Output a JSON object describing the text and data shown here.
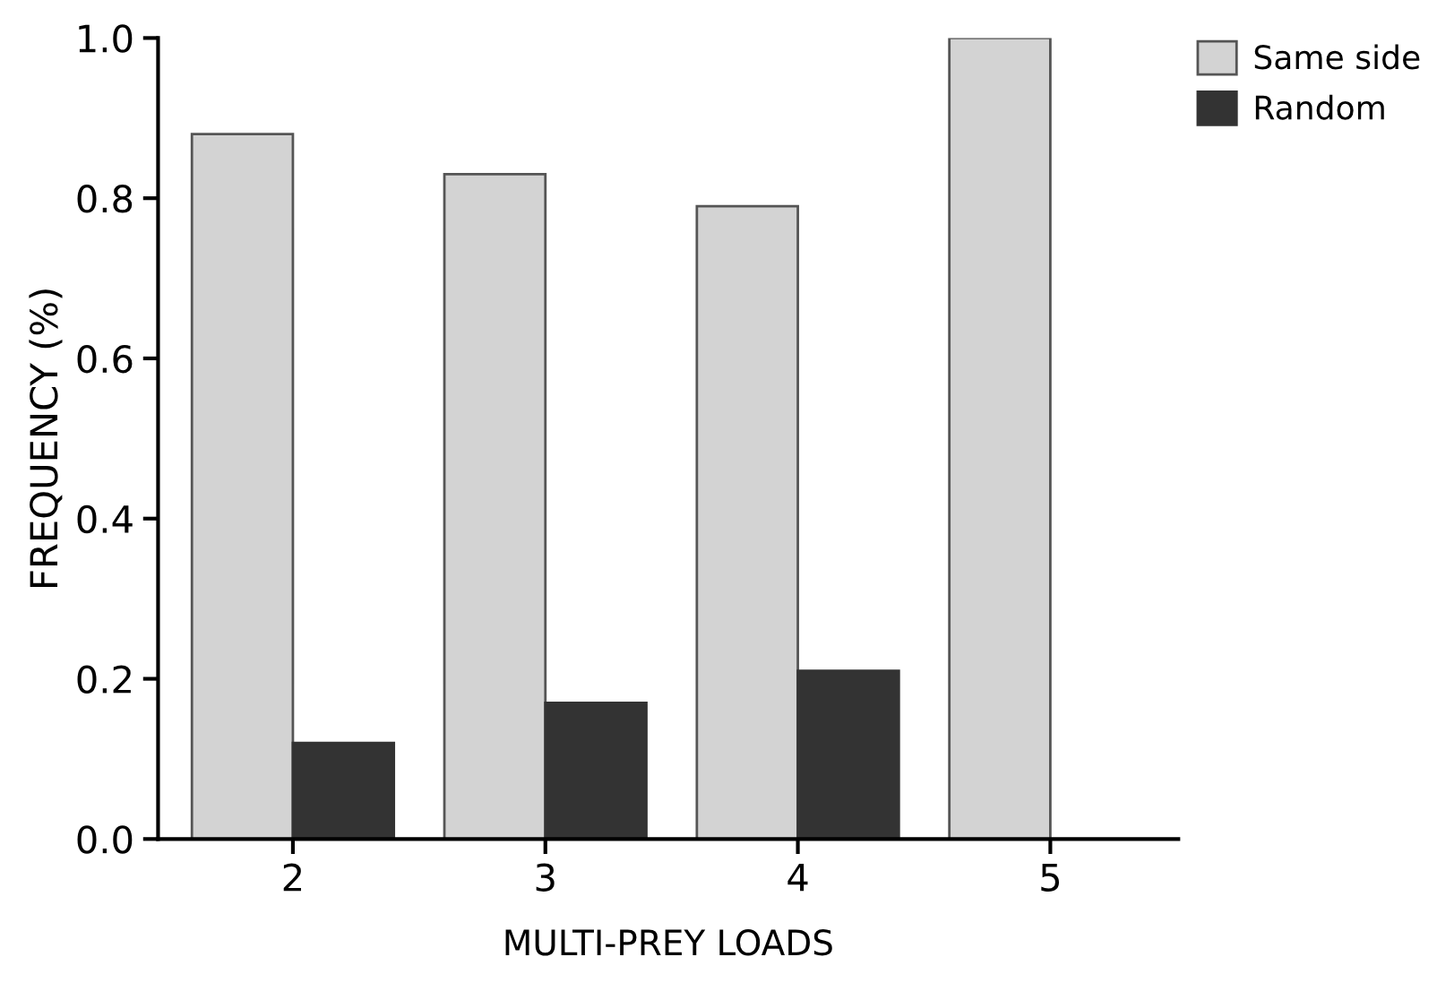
{
  "chart_data": {
    "type": "bar",
    "xlabel": "MULTI-PREY LOADS",
    "ylabel": "FREQUENCY (%)",
    "categories": [
      "2",
      "3",
      "4",
      "5"
    ],
    "series": [
      {
        "name": "Same side",
        "color": "#d3d3d3",
        "values": [
          0.88,
          0.83,
          0.79,
          1.0
        ]
      },
      {
        "name": "Random",
        "color": "#333333",
        "values": [
          0.12,
          0.17,
          0.21,
          0
        ]
      }
    ],
    "ylim": [
      0,
      1.0
    ],
    "yticks": [
      {
        "value": 0,
        "label": "0.0"
      },
      {
        "value": 0.2,
        "label": "0.2"
      },
      {
        "value": 0.4,
        "label": "0.4"
      },
      {
        "value": 0.6,
        "label": "0.6"
      },
      {
        "value": 0.8,
        "label": "0.8"
      },
      {
        "value": 1.0,
        "label": "1.0"
      }
    ],
    "grid": false,
    "legend": "top right"
  }
}
